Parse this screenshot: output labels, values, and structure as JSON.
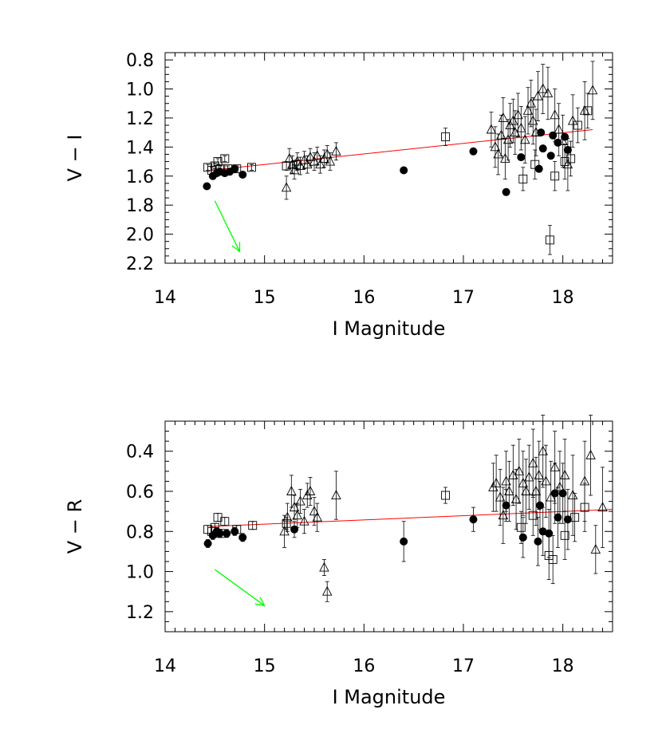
{
  "chart_data": [
    {
      "type": "scatter",
      "xlabel": "I Magnitude",
      "ylabel": "V − I",
      "xlim": [
        14.0,
        18.5
      ],
      "ylim": [
        2.2,
        0.75
      ],
      "y_inverted": true,
      "xticks": [
        "14",
        "15",
        "16",
        "17",
        "18"
      ],
      "yticks": [
        "0.8",
        "1.0",
        "1.2",
        "1.4",
        "1.6",
        "1.8",
        "2.0",
        "2.2"
      ],
      "fit_line": {
        "x": [
          14.45,
          18.3
        ],
        "y": [
          1.56,
          1.28
        ],
        "color": "#ff0000"
      },
      "reddening_vector": {
        "from": [
          14.5,
          1.77
        ],
        "to": [
          14.75,
          2.12
        ],
        "color": "#00ff00"
      },
      "series": [
        {
          "marker": "filled-circle",
          "x": [
            14.42,
            14.48,
            14.52,
            14.55,
            14.6,
            14.65,
            14.7,
            14.78,
            16.4,
            17.1,
            17.43,
            17.58,
            17.76,
            17.78,
            17.8,
            17.88,
            17.9,
            17.95,
            18.02,
            18.05
          ],
          "y": [
            1.67,
            1.6,
            1.58,
            1.57,
            1.58,
            1.57,
            1.55,
            1.59,
            1.56,
            1.43,
            1.71,
            1.47,
            1.55,
            1.3,
            1.41,
            1.46,
            1.32,
            1.37,
            1.33,
            1.42
          ]
        },
        {
          "marker": "open-square",
          "x": [
            14.43,
            14.47,
            14.5,
            14.53,
            14.56,
            14.6,
            14.63,
            14.72,
            14.87,
            15.22,
            15.32,
            16.82,
            17.6,
            17.72,
            17.87,
            17.92,
            18.02,
            18.08,
            18.15,
            18.25
          ],
          "y": [
            1.54,
            1.56,
            1.53,
            1.5,
            1.55,
            1.48,
            1.55,
            1.55,
            1.54,
            1.53,
            1.52,
            1.33,
            1.62,
            1.52,
            2.04,
            1.6,
            1.5,
            1.48,
            1.25,
            1.15
          ],
          "yerr": [
            0.02,
            0.02,
            0.02,
            0.02,
            0.02,
            0.02,
            0.02,
            0.02,
            0.02,
            0.03,
            0.03,
            0.06,
            0.08,
            0.1,
            0.1,
            0.1,
            0.12,
            0.12,
            0.12,
            0.12
          ]
        },
        {
          "marker": "open-triangle",
          "x": [
            15.22,
            15.25,
            15.28,
            15.3,
            15.33,
            15.36,
            15.4,
            15.43,
            15.46,
            15.5,
            15.53,
            15.56,
            15.6,
            15.63,
            15.66,
            15.72,
            17.28,
            17.32,
            17.35,
            17.38,
            17.4,
            17.42,
            17.45,
            17.47,
            17.5,
            17.52,
            17.55,
            17.58,
            17.62,
            17.65,
            17.68,
            17.7,
            17.73,
            17.75,
            17.8,
            17.85,
            17.92,
            17.96,
            18.0,
            18.05,
            18.1,
            18.22,
            18.3
          ],
          "y": [
            1.68,
            1.48,
            1.52,
            1.56,
            1.5,
            1.53,
            1.49,
            1.52,
            1.47,
            1.5,
            1.46,
            1.52,
            1.48,
            1.45,
            1.5,
            1.43,
            1.28,
            1.4,
            1.45,
            1.32,
            1.2,
            1.48,
            1.35,
            1.25,
            1.22,
            1.3,
            1.18,
            1.27,
            1.35,
            1.15,
            1.1,
            1.22,
            1.3,
            1.05,
            1.0,
            1.03,
            1.18,
            1.28,
            1.36,
            1.52,
            1.22,
            1.15,
            1.01
          ],
          "yerr": [
            0.08,
            0.07,
            0.06,
            0.06,
            0.06,
            0.06,
            0.06,
            0.06,
            0.06,
            0.06,
            0.06,
            0.06,
            0.06,
            0.06,
            0.06,
            0.06,
            0.12,
            0.14,
            0.14,
            0.14,
            0.14,
            0.14,
            0.14,
            0.15,
            0.15,
            0.15,
            0.15,
            0.15,
            0.16,
            0.16,
            0.16,
            0.16,
            0.16,
            0.17,
            0.17,
            0.18,
            0.18,
            0.18,
            0.18,
            0.18,
            0.18,
            0.2,
            0.2
          ]
        }
      ]
    },
    {
      "type": "scatter",
      "xlabel": "I Magnitude",
      "ylabel": "V − R",
      "xlim": [
        14.0,
        18.5
      ],
      "ylim": [
        1.3,
        0.25
      ],
      "y_inverted": true,
      "xticks": [
        "14",
        "15",
        "16",
        "17",
        "18"
      ],
      "yticks": [
        "0.4",
        "0.6",
        "0.8",
        "1.0",
        "1.2"
      ],
      "fit_line": {
        "x": [
          14.45,
          18.5
        ],
        "y": [
          0.775,
          0.69
        ],
        "color": "#ff0000"
      },
      "reddening_vector": {
        "from": [
          14.5,
          0.99
        ],
        "to": [
          15.0,
          1.17
        ],
        "color": "#00ff00"
      },
      "series": [
        {
          "marker": "filled-circle",
          "x": [
            14.43,
            14.48,
            14.52,
            14.55,
            14.62,
            14.7,
            14.78,
            15.3,
            16.4,
            17.1,
            17.43,
            17.6,
            17.75,
            17.77,
            17.8,
            17.86,
            17.92,
            17.95,
            18.0,
            18.05
          ],
          "y": [
            0.86,
            0.82,
            0.8,
            0.81,
            0.81,
            0.8,
            0.83,
            0.79,
            0.85,
            0.74,
            0.67,
            0.83,
            0.85,
            0.67,
            0.8,
            0.81,
            0.61,
            0.73,
            0.61,
            0.74
          ],
          "yerr": [
            0.02,
            0.02,
            0.02,
            0.02,
            0.02,
            0.02,
            0.02,
            0.04,
            0.1,
            0.06,
            0.08,
            0.1,
            0.12,
            0.12,
            0.12,
            0.12,
            0.15,
            0.15,
            0.15,
            0.15
          ]
        },
        {
          "marker": "open-square",
          "x": [
            14.43,
            14.47,
            14.5,
            14.53,
            14.56,
            14.6,
            14.72,
            14.88,
            15.22,
            16.82,
            17.58,
            17.7,
            17.86,
            17.9,
            18.02,
            18.12,
            18.22
          ],
          "y": [
            0.79,
            0.8,
            0.78,
            0.73,
            0.81,
            0.75,
            0.79,
            0.77,
            0.76,
            0.62,
            0.78,
            0.72,
            0.92,
            0.94,
            0.82,
            0.73,
            0.68
          ],
          "yerr": [
            0.02,
            0.02,
            0.02,
            0.02,
            0.02,
            0.02,
            0.02,
            0.02,
            0.03,
            0.04,
            0.08,
            0.1,
            0.12,
            0.12,
            0.12,
            0.12,
            0.12
          ]
        },
        {
          "marker": "open-triangle",
          "x": [
            15.2,
            15.23,
            15.27,
            15.3,
            15.33,
            15.36,
            15.4,
            15.43,
            15.46,
            15.5,
            15.53,
            15.6,
            15.63,
            15.72,
            17.3,
            17.33,
            17.37,
            17.4,
            17.43,
            17.46,
            17.5,
            17.53,
            17.56,
            17.6,
            17.63,
            17.66,
            17.7,
            17.73,
            17.76,
            17.8,
            17.83,
            17.88,
            17.92,
            17.97,
            18.02,
            18.1,
            18.22,
            18.28,
            18.33,
            18.4
          ],
          "y": [
            0.8,
            0.73,
            0.6,
            0.68,
            0.72,
            0.65,
            0.75,
            0.62,
            0.6,
            0.7,
            0.73,
            0.98,
            1.1,
            0.62,
            0.58,
            0.56,
            0.63,
            0.72,
            0.55,
            0.6,
            0.52,
            0.64,
            0.5,
            0.56,
            0.6,
            0.53,
            0.46,
            0.6,
            0.52,
            0.4,
            0.55,
            0.63,
            0.48,
            0.58,
            0.52,
            0.62,
            0.55,
            0.42,
            0.89,
            0.68
          ],
          "yerr": [
            0.08,
            0.07,
            0.08,
            0.06,
            0.06,
            0.06,
            0.06,
            0.06,
            0.07,
            0.07,
            0.07,
            0.04,
            0.05,
            0.12,
            0.12,
            0.14,
            0.14,
            0.14,
            0.15,
            0.15,
            0.15,
            0.15,
            0.16,
            0.16,
            0.16,
            0.16,
            0.17,
            0.17,
            0.17,
            0.18,
            0.18,
            0.18,
            0.18,
            0.18,
            0.18,
            0.2,
            0.2,
            0.2,
            0.12,
            0.2
          ]
        }
      ]
    }
  ]
}
